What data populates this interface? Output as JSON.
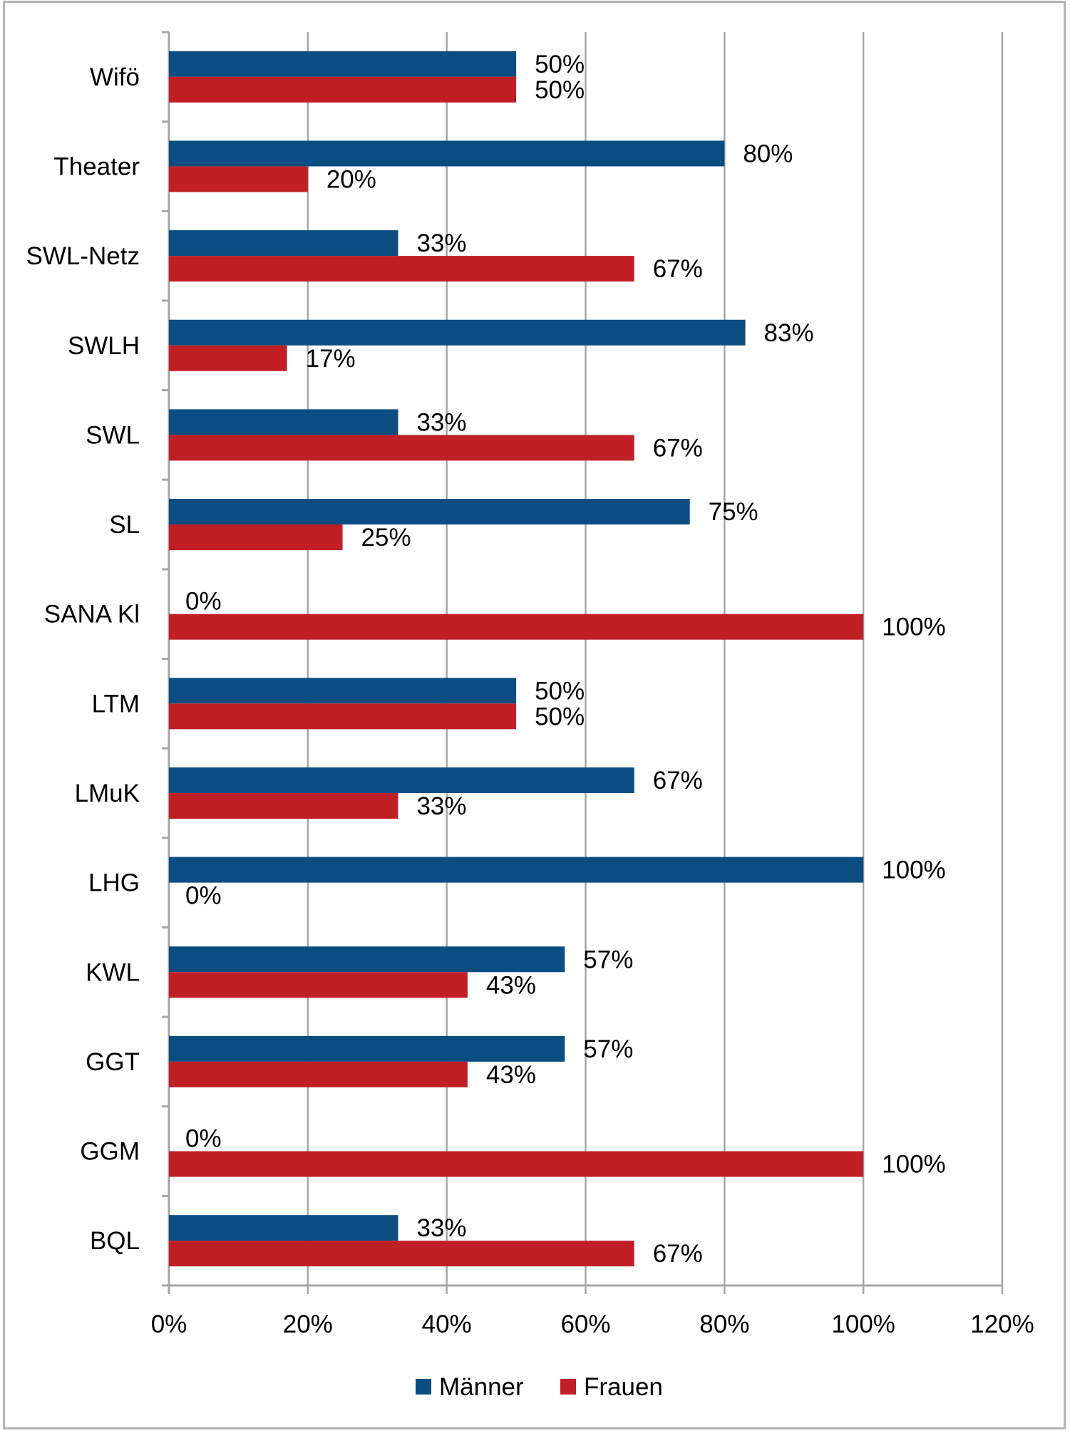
{
  "chart_data": {
    "type": "bar",
    "orientation": "horizontal",
    "title": "",
    "xlabel": "",
    "ylabel": "",
    "xlim": [
      0,
      120
    ],
    "xticks": [
      "0%",
      "20%",
      "40%",
      "60%",
      "80%",
      "100%",
      "120%"
    ],
    "grid": true,
    "legend_position": "bottom",
    "categories": [
      "Wifö",
      "Theater",
      "SWL-Netz",
      "SWLH",
      "SWL",
      "SL",
      "SANA Kl",
      "LTM",
      "LMuK",
      "LHG",
      "KWL",
      "GGT",
      "GGM",
      "BQL"
    ],
    "series": [
      {
        "name": "Männer",
        "color": "#0a4d80",
        "values": [
          50,
          80,
          33,
          83,
          33,
          75,
          0,
          50,
          67,
          100,
          57,
          57,
          0,
          33
        ],
        "labels": [
          "50%",
          "80%",
          "33%",
          "83%",
          "33%",
          "75%",
          "0%",
          "50%",
          "67%",
          "100%",
          "57%",
          "57%",
          "0%",
          "33%"
        ]
      },
      {
        "name": "Frauen",
        "color": "#c01f26",
        "values": [
          50,
          20,
          67,
          17,
          67,
          25,
          100,
          50,
          33,
          0,
          43,
          43,
          100,
          67
        ],
        "labels": [
          "50%",
          "20%",
          "67%",
          "17%",
          "67%",
          "25%",
          "100%",
          "50%",
          "33%",
          "0%",
          "43%",
          "43%",
          "100%",
          "67%"
        ]
      }
    ]
  }
}
